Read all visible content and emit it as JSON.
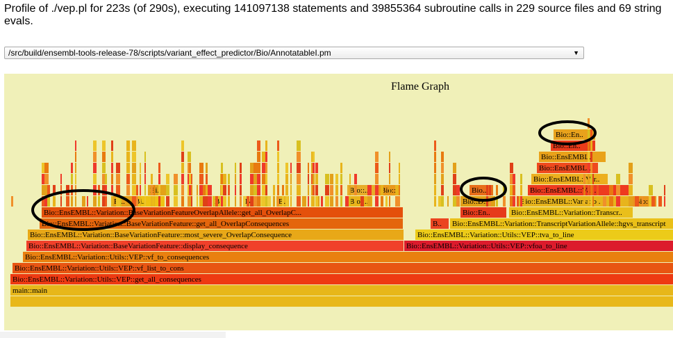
{
  "header": {
    "profile_summary": "Profile of ./vep.pl for 223s (of 290s), executing 141097138 statements and 39855364 subroutine calls in 229 source files and 69 string evals."
  },
  "file_select": {
    "selected": "/src/build/ensembl-tools-release-78/scripts/variant_effect_predictor/Bio/AnnotatableI.pm",
    "arrow_icon": "dropdown-arrow-icon"
  },
  "flame_graph": {
    "title": "Flame Graph",
    "frames": [
      {
        "label": "main::main",
        "depth": 1
      },
      {
        "label": "Bio::EnsEMBL::Variation::Utils::VEP::get_all_consequences",
        "depth": 2
      },
      {
        "label": "Bio::EnsEMBL::Variation::Utils::VEP::vf_list_to_cons",
        "depth": 3
      },
      {
        "label": "Bio::EnsEMBL::Variation::Utils::VEP::vf_to_consequences",
        "depth": 4
      },
      {
        "label": "Bio::EnsEMBL::Variation::BaseVariationFeature::display_consequence",
        "depth": 5
      },
      {
        "label": "Bio::EnsEMBL::Variation::Utils::VEP::vfoa_to_line",
        "depth": 5
      },
      {
        "label": "Bio::EnsEMBL::Variation::BaseVariationFeature::most_severe_OverlapConsequence",
        "depth": 6
      },
      {
        "label": "Bio::EnsEMBL::Variation::Utils::VEP::tva_to_line",
        "depth": 6
      },
      {
        "label": "Bio::EnsEMBL::Variation::BaseVariationFeature::get_all_OverlapConsequences",
        "depth": 7
      },
      {
        "label": "B..",
        "depth": 7
      },
      {
        "label": "Bio::EnsEMBL::Variation::TranscriptVariationAllele::hgvs_transcript",
        "depth": 7
      },
      {
        "label": "Bio::EnsEMBL::Variation::BaseVariationFeatureOverlapAllele::get_all_OverlapC...",
        "depth": 8
      },
      {
        "label": "Bio::En..",
        "depth": 8
      },
      {
        "label": "Bio::EnsEMBL::Variation::Transcr..",
        "depth": 8
      },
      {
        "label": "Bi..",
        "depth": 9
      },
      {
        "label": "Bi..",
        "depth": 9
      },
      {
        "label": "B..",
        "depth": 9
      },
      {
        "label": "Bi..",
        "depth": 9
      },
      {
        "label": "B..",
        "depth": 9
      },
      {
        "label": "Bio::..",
        "depth": 9
      },
      {
        "label": "Bio::D..",
        "depth": 9
      },
      {
        "label": "Bio::EnsEMBL::Variatio..",
        "depth": 9
      },
      {
        "label": "Bio::..",
        "depth": 9
      },
      {
        "label": "Bi..",
        "depth": 10
      },
      {
        "label": "Bio::..",
        "depth": 10
      },
      {
        "label": "Bio::..",
        "depth": 10
      },
      {
        "label": "Bio..",
        "depth": 10
      },
      {
        "label": "Bio::EnsEMBL::Var..",
        "depth": 10
      },
      {
        "label": "Bio::EnsEMBL::Var..",
        "depth": 11
      },
      {
        "label": "Bio::EnsEMBL..",
        "depth": 12
      },
      {
        "label": "Bio::EnsEMBL..",
        "depth": 13
      },
      {
        "label": "Bio::En..",
        "depth": 14
      },
      {
        "label": "Bio::En..",
        "depth": 15
      }
    ]
  }
}
